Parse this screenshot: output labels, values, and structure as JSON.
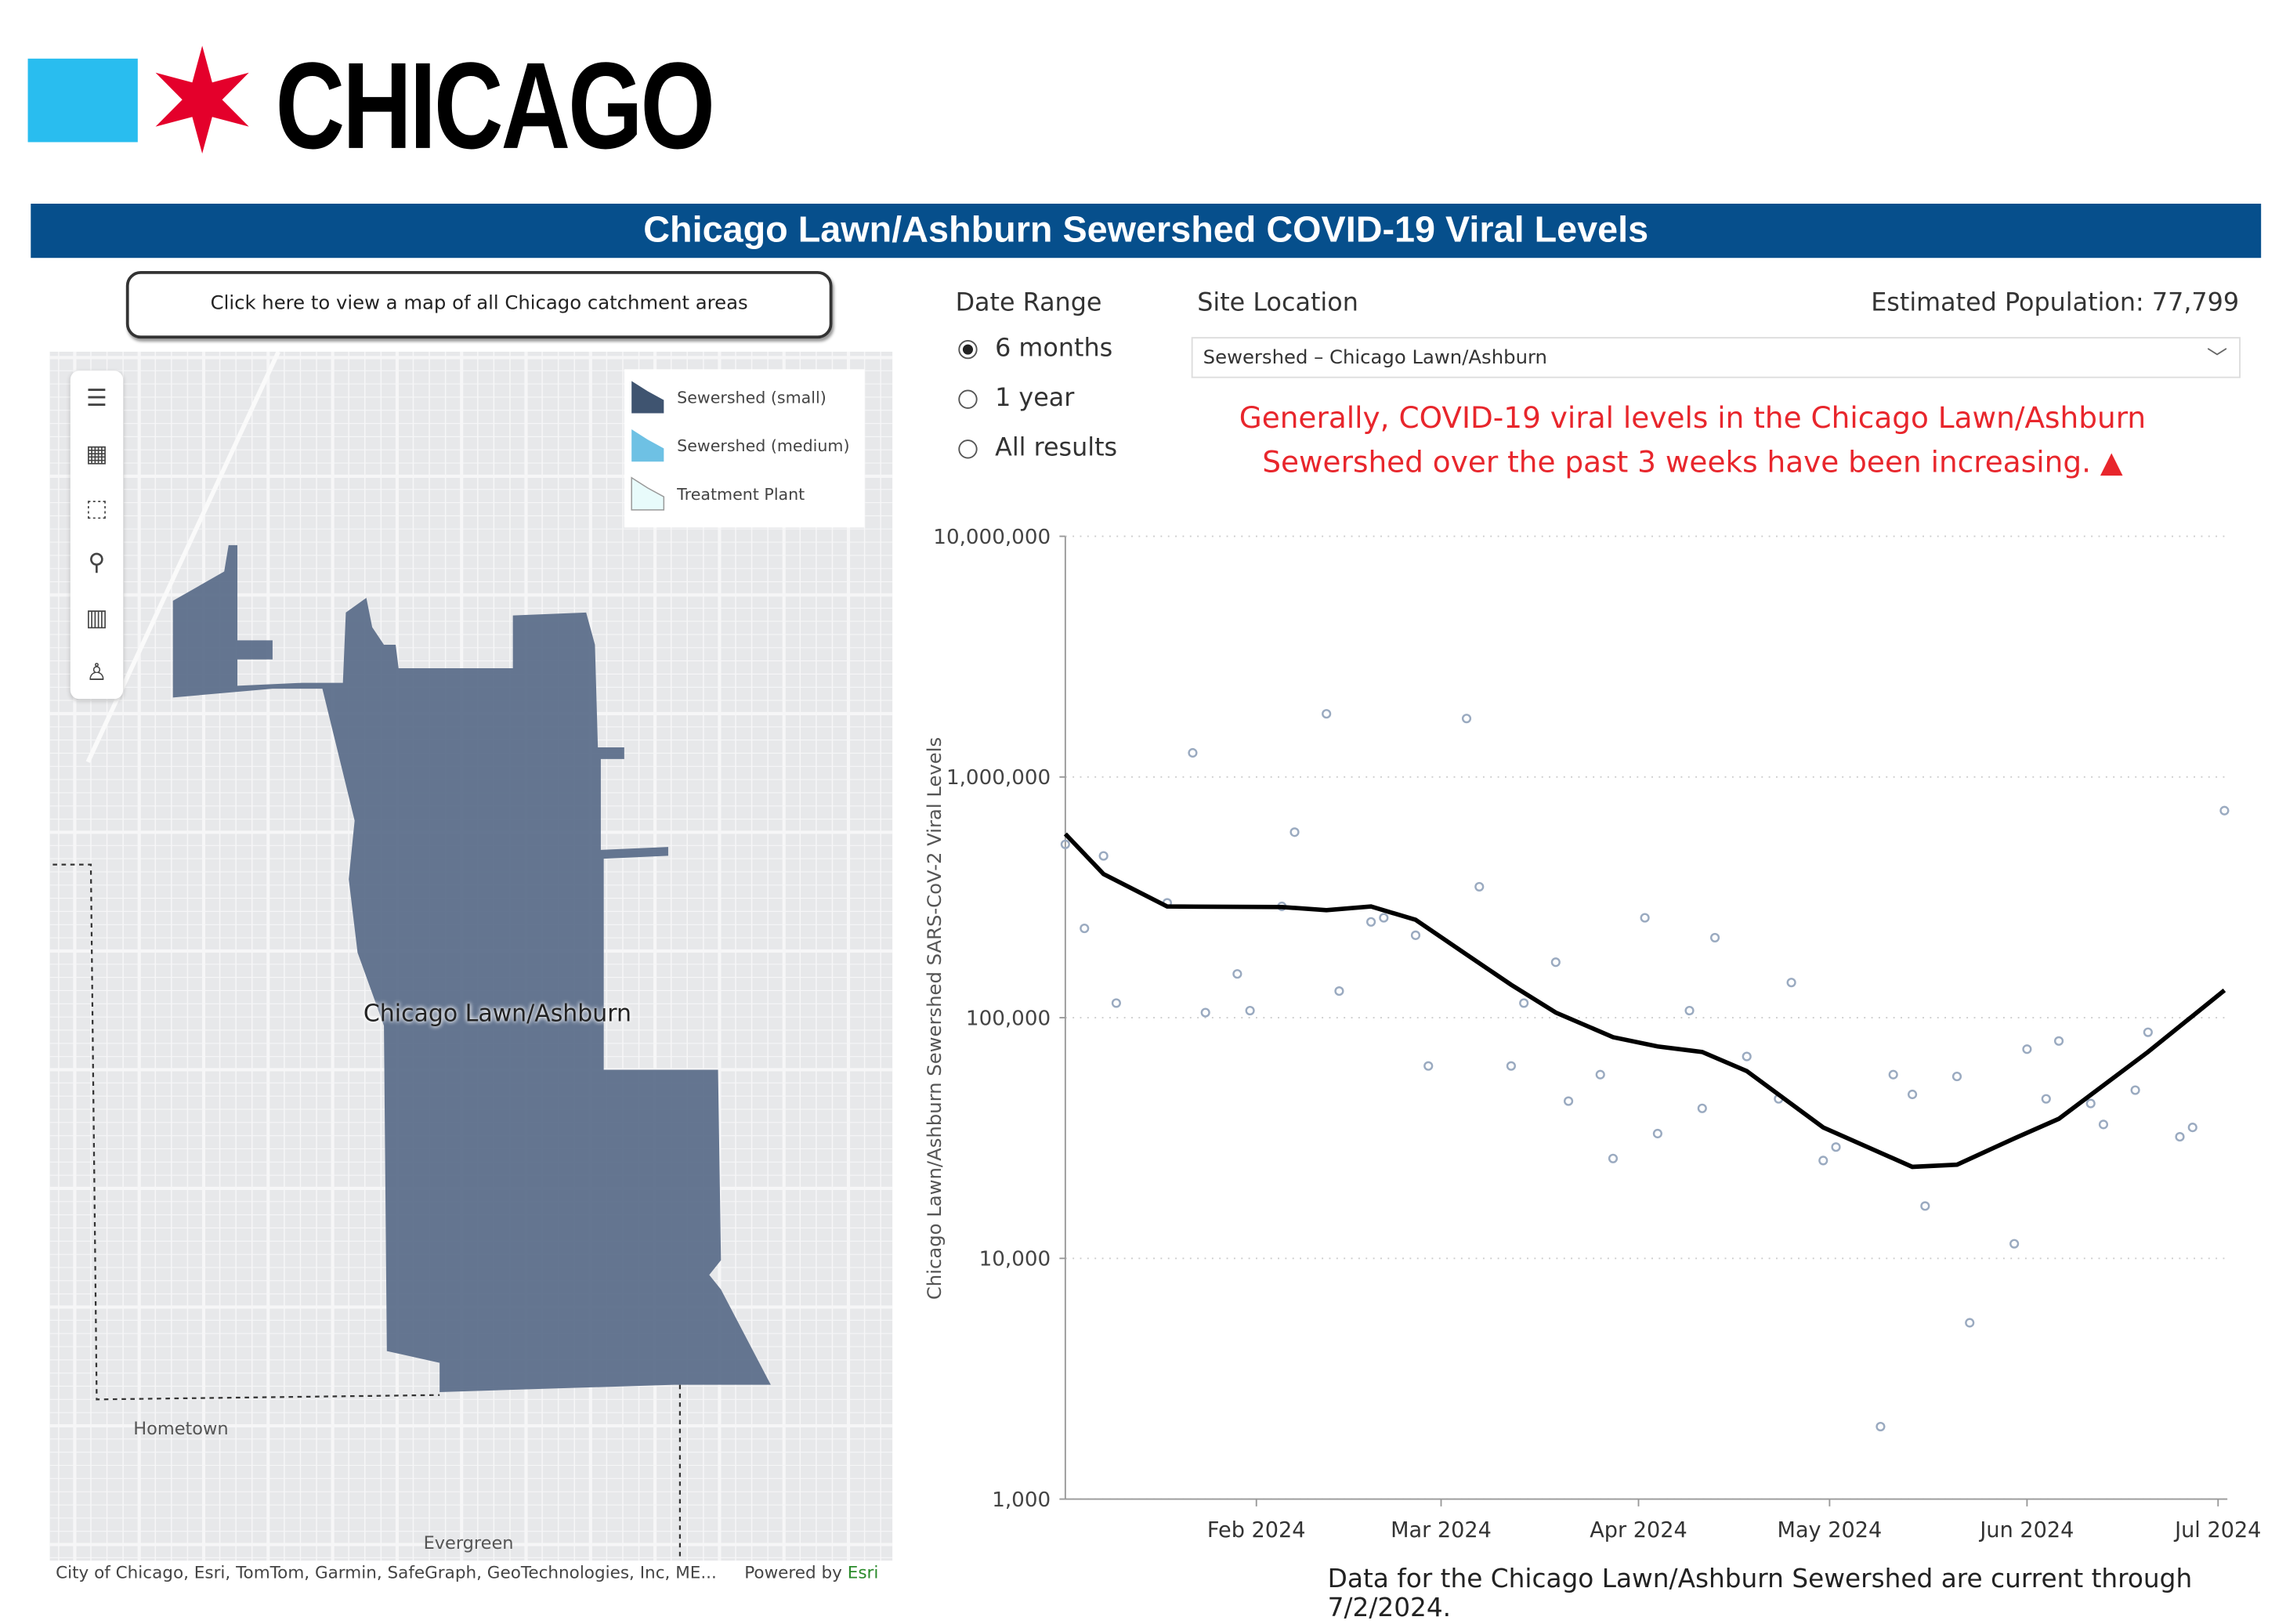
{
  "logo": {
    "text": "CHICAGO",
    "square_color": "#29bdef",
    "star_color": "#e4002b"
  },
  "header": {
    "title": "Chicago Lawn/Ashburn Sewershed COVID-19 Viral Levels",
    "bar_color": "#064f8c"
  },
  "catchment_button": {
    "label": "Click here to view a map of all Chicago catchment areas"
  },
  "map": {
    "tools": [
      "menu-icon",
      "qr-grid-icon",
      "select-box-icon",
      "search-icon",
      "chart-bars-icon",
      "person-icon"
    ],
    "legend": [
      {
        "label": "Sewershed (small)",
        "color": "#3f5470"
      },
      {
        "label": "Sewershed (medium)",
        "color": "#6ec1e4"
      },
      {
        "label": "Treatment Plant",
        "color": "#e8fbfb"
      }
    ],
    "area_label": "Chicago Lawn/Ashburn",
    "towns": [
      "Hometown",
      "Evergreen"
    ],
    "attribution": "City of Chicago, Esri, TomTom, Garmin, SafeGraph, GeoTechnologies, Inc, ME...",
    "powered_by": "Powered by",
    "esri": "Esri"
  },
  "controls": {
    "date_range_label": "Date Range",
    "date_options": [
      {
        "label": "6 months",
        "selected": true
      },
      {
        "label": "1 year",
        "selected": false
      },
      {
        "label": "All results",
        "selected": false
      }
    ],
    "site_location_label": "Site Location",
    "site_value": "Sewershed – Chicago Lawn/Ashburn",
    "population_text": "Estimated Population: 77,799"
  },
  "status": {
    "line1": "Generally, COVID-19 viral levels in the Chicago Lawn/Ashburn",
    "line2": "Sewershed over the past 3 weeks have been increasing.",
    "trend_icon": "▲",
    "color": "#e8262c"
  },
  "chart_data": {
    "type": "scatter",
    "ylabel": "Chicago Lawn/Ashburn Sewershed SARS-CoV-2 Viral Levels",
    "xlabel": "",
    "y_scale": "log",
    "ylim": [
      1000,
      10000000
    ],
    "xlim": [
      "2024-01-02",
      "2024-07-02"
    ],
    "y_ticks": [
      {
        "v": 1000,
        "label": "1,000"
      },
      {
        "v": 10000,
        "label": "10,000"
      },
      {
        "v": 100000,
        "label": "100,000"
      },
      {
        "v": 1000000,
        "label": "1,000,000"
      },
      {
        "v": 10000000,
        "label": "10,000,000"
      }
    ],
    "x_ticks": [
      {
        "d": "2024-02-01",
        "label": "Feb 2024"
      },
      {
        "d": "2024-03-01",
        "label": "Mar 2024"
      },
      {
        "d": "2024-04-01",
        "label": "Apr 2024"
      },
      {
        "d": "2024-05-01",
        "label": "May 2024"
      },
      {
        "d": "2024-06-01",
        "label": "Jun 2024"
      },
      {
        "d": "2024-07-01",
        "label": "Jul 2024"
      }
    ],
    "grid": "horizontal dotted",
    "point_color": "#9aaac0",
    "line_color": "#000000",
    "points": [
      [
        "2024-01-02",
        525000
      ],
      [
        "2024-01-05",
        235000
      ],
      [
        "2024-01-08",
        470000
      ],
      [
        "2024-01-10",
        115000
      ],
      [
        "2024-01-18",
        300000
      ],
      [
        "2024-01-22",
        1260000
      ],
      [
        "2024-01-24",
        105000
      ],
      [
        "2024-01-29",
        152000
      ],
      [
        "2024-01-31",
        107000
      ],
      [
        "2024-02-05",
        290000
      ],
      [
        "2024-02-07",
        590000
      ],
      [
        "2024-02-12",
        1830000
      ],
      [
        "2024-02-14",
        129000
      ],
      [
        "2024-02-19",
        250000
      ],
      [
        "2024-02-21",
        260000
      ],
      [
        "2024-02-26",
        220000
      ],
      [
        "2024-02-28",
        63000
      ],
      [
        "2024-03-05",
        1750000
      ],
      [
        "2024-03-07",
        350000
      ],
      [
        "2024-03-12",
        63000
      ],
      [
        "2024-03-14",
        115000
      ],
      [
        "2024-03-19",
        170000
      ],
      [
        "2024-03-21",
        45000
      ],
      [
        "2024-03-26",
        58000
      ],
      [
        "2024-03-28",
        26000
      ],
      [
        "2024-04-02",
        260000
      ],
      [
        "2024-04-04",
        33000
      ],
      [
        "2024-04-09",
        107000
      ],
      [
        "2024-04-11",
        42000
      ],
      [
        "2024-04-13",
        215000
      ],
      [
        "2024-04-18",
        69000
      ],
      [
        "2024-04-23",
        46000
      ],
      [
        "2024-04-25",
        140000
      ],
      [
        "2024-04-30",
        25500
      ],
      [
        "2024-05-02",
        29000
      ],
      [
        "2024-05-09",
        2000
      ],
      [
        "2024-05-11",
        58000
      ],
      [
        "2024-05-14",
        48000
      ],
      [
        "2024-05-16",
        16500
      ],
      [
        "2024-05-21",
        57000
      ],
      [
        "2024-05-23",
        5400
      ],
      [
        "2024-05-30",
        11500
      ],
      [
        "2024-06-01",
        74000
      ],
      [
        "2024-06-04",
        46000
      ],
      [
        "2024-06-06",
        80000
      ],
      [
        "2024-06-11",
        44000
      ],
      [
        "2024-06-13",
        36000
      ],
      [
        "2024-06-18",
        50000
      ],
      [
        "2024-06-20",
        87000
      ],
      [
        "2024-06-25",
        32000
      ],
      [
        "2024-06-27",
        35000
      ],
      [
        "2024-07-02",
        725000
      ]
    ],
    "trend": [
      [
        "2024-01-02",
        580000
      ],
      [
        "2024-01-08",
        395000
      ],
      [
        "2024-01-18",
        290000
      ],
      [
        "2024-02-05",
        288000
      ],
      [
        "2024-02-12",
        280000
      ],
      [
        "2024-02-19",
        290000
      ],
      [
        "2024-02-26",
        255000
      ],
      [
        "2024-03-05",
        183000
      ],
      [
        "2024-03-12",
        137000
      ],
      [
        "2024-03-19",
        105000
      ],
      [
        "2024-03-28",
        83000
      ],
      [
        "2024-04-04",
        76000
      ],
      [
        "2024-04-11",
        72000
      ],
      [
        "2024-04-18",
        60000
      ],
      [
        "2024-04-30",
        35000
      ],
      [
        "2024-05-14",
        24000
      ],
      [
        "2024-05-21",
        24500
      ],
      [
        "2024-05-30",
        31500
      ],
      [
        "2024-06-06",
        38000
      ],
      [
        "2024-06-20",
        72000
      ],
      [
        "2024-07-02",
        130000
      ]
    ]
  },
  "footnote": "Data for the Chicago Lawn/Ashburn Sewershed are current through 7/2/2024."
}
